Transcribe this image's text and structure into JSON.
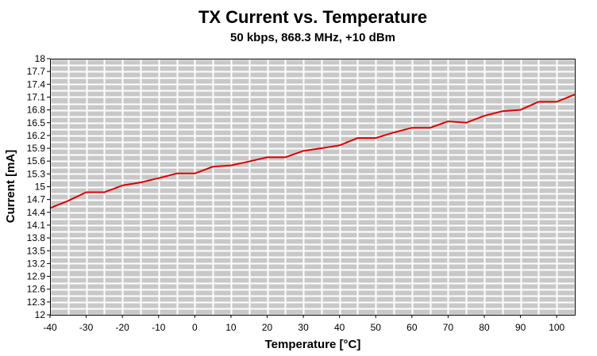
{
  "chart_data": {
    "type": "line",
    "title": "TX Current vs. Temperature",
    "subtitle": "50 kbps, 868.3 MHz, +10 dBm",
    "xlabel": "Temperature [°C]",
    "ylabel": "Current [mA]",
    "xlim": [
      -40,
      105
    ],
    "ylim": [
      12,
      18
    ],
    "grid": true,
    "x_ticks": [
      -40,
      -30,
      -20,
      -10,
      0,
      10,
      20,
      30,
      40,
      50,
      60,
      70,
      80,
      90,
      100
    ],
    "x_tick_labels": [
      "-40",
      "-30",
      "-20",
      "-10",
      "0",
      "10",
      "20",
      "30",
      "40",
      "50",
      "60",
      "70",
      "80",
      "90",
      "100"
    ],
    "y_ticks": [
      12,
      12.3,
      12.6,
      12.9,
      13.2,
      13.5,
      13.8,
      14.1,
      14.4,
      14.7,
      15,
      15.3,
      15.6,
      15.9,
      16.2,
      16.5,
      16.8,
      17.1,
      17.4,
      17.7,
      18
    ],
    "y_tick_labels": [
      "12",
      "12.3",
      "12.6",
      "12.9",
      "13.2",
      "13.5",
      "13.8",
      "14.1",
      "14.4",
      "14.7",
      "15",
      "15.3",
      "15.6",
      "15.9",
      "16.2",
      "16.5",
      "16.8",
      "17.1",
      "17.4",
      "17.7",
      "18"
    ],
    "series": [
      {
        "name": "TX Current",
        "color": "#dd0000",
        "x": [
          -40,
          -35,
          -30,
          -25,
          -20,
          -15,
          -10,
          -5,
          0,
          5,
          10,
          15,
          20,
          25,
          30,
          35,
          40,
          45,
          50,
          55,
          60,
          65,
          70,
          75,
          80,
          85,
          90,
          95,
          100,
          105
        ],
        "y": [
          14.5,
          14.67,
          14.87,
          14.87,
          15.03,
          15.1,
          15.2,
          15.31,
          15.31,
          15.47,
          15.5,
          15.59,
          15.69,
          15.69,
          15.84,
          15.9,
          15.97,
          16.14,
          16.14,
          16.27,
          16.38,
          16.38,
          16.53,
          16.5,
          16.66,
          16.77,
          16.8,
          16.99,
          16.99,
          17.16
        ]
      }
    ]
  }
}
